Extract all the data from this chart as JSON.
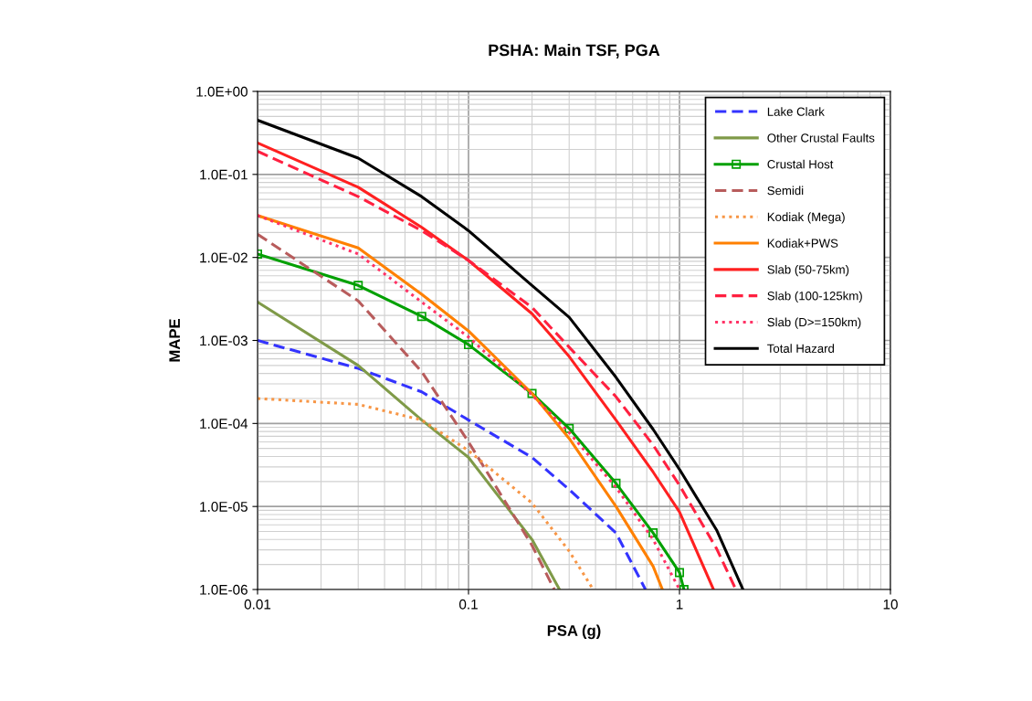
{
  "chart_data": {
    "type": "line",
    "title": "PSHA: Main TSF, PGA",
    "xlabel": "PSA (g)",
    "ylabel": "MAPE",
    "log": "xy",
    "grid": true,
    "legend": "top right",
    "xlim": [
      0.01,
      10
    ],
    "xticks": [
      0.01,
      0.1,
      1,
      10
    ],
    "ylim": [
      1e-06,
      1
    ],
    "yticks": [
      {
        "value": 1e-06,
        "label": "1.0E-06"
      },
      {
        "value": 1e-05,
        "label": "1.0E-05"
      },
      {
        "value": 0.0001,
        "label": "1.0E-04"
      },
      {
        "value": 0.001,
        "label": "1.0E-03"
      },
      {
        "value": 0.01,
        "label": "1.0E-02"
      },
      {
        "value": 0.1,
        "label": "1.0E-01"
      },
      {
        "value": 1,
        "label": "1.0E+00"
      }
    ],
    "series": [
      {
        "name": "Lake Clark",
        "color": "#3333ff",
        "line_style": "dashed",
        "x": [
          0.01,
          0.03,
          0.06,
          0.1,
          0.2,
          0.3,
          0.5,
          0.69
        ],
        "values": [
          0.001,
          0.00046,
          0.00024,
          0.00011,
          3.9e-05,
          1.6e-05,
          4.8e-06,
          1e-06
        ]
      },
      {
        "name": "Other Crustal Faults",
        "color": "#7f9a48",
        "line_style": "solid",
        "x": [
          0.01,
          0.03,
          0.06,
          0.1,
          0.2,
          0.27
        ],
        "values": [
          0.0029,
          0.0005,
          0.00011,
          3.9e-05,
          4e-06,
          1e-06
        ]
      },
      {
        "name": "Crustal Host",
        "color": "#00a000",
        "line_style": "solid",
        "marker": "square",
        "x": [
          0.01,
          0.03,
          0.06,
          0.1,
          0.2,
          0.3,
          0.5,
          0.75,
          1,
          1.05
        ],
        "values": [
          0.011,
          0.0046,
          0.00195,
          0.00089,
          0.00023,
          8.7e-05,
          1.9e-05,
          4.8e-06,
          1.6e-06,
          1e-06
        ]
      },
      {
        "name": "Semidi",
        "color": "#b85c5c",
        "line_style": "dashed",
        "x": [
          0.01,
          0.03,
          0.06,
          0.1,
          0.2,
          0.255
        ],
        "values": [
          0.019,
          0.003,
          0.00042,
          6e-05,
          3.4e-06,
          1e-06
        ]
      },
      {
        "name": "Kodiak (Mega)",
        "color": "#f79646",
        "line_style": "dotted",
        "x": [
          0.01,
          0.03,
          0.06,
          0.1,
          0.2,
          0.3,
          0.39
        ],
        "values": [
          0.0002,
          0.00017,
          0.00011,
          4.7e-05,
          1.1e-05,
          2.9e-06,
          1e-06
        ]
      },
      {
        "name": "Kodiak+PWS",
        "color": "#ff8000",
        "line_style": "solid",
        "x": [
          0.01,
          0.03,
          0.06,
          0.1,
          0.2,
          0.3,
          0.5,
          0.75,
          0.83
        ],
        "values": [
          0.032,
          0.013,
          0.0036,
          0.0013,
          0.00023,
          6.6e-05,
          1e-05,
          1.9e-06,
          1e-06
        ]
      },
      {
        "name": "Slab (50-75km)",
        "color": "#ff2020",
        "line_style": "solid",
        "x": [
          0.01,
          0.03,
          0.06,
          0.1,
          0.2,
          0.3,
          0.5,
          0.75,
          1,
          1.45
        ],
        "values": [
          0.24,
          0.07,
          0.023,
          0.0092,
          0.0021,
          0.00064,
          0.00011,
          2.6e-05,
          8.6e-06,
          1e-06
        ]
      },
      {
        "name": "Slab (100-125km)",
        "color": "#ff2040",
        "line_style": "dashed",
        "x": [
          0.01,
          0.03,
          0.06,
          0.1,
          0.2,
          0.3,
          0.5,
          0.75,
          1,
          1.5,
          1.85
        ],
        "values": [
          0.19,
          0.054,
          0.021,
          0.0092,
          0.0025,
          0.00083,
          0.00021,
          5.5e-05,
          1.8e-05,
          3.1e-06,
          1e-06
        ]
      },
      {
        "name": "Slab (D>=150km)",
        "color": "#ff3366",
        "line_style": "dotted",
        "x": [
          0.01,
          0.03,
          0.06,
          0.1,
          0.2,
          0.3,
          0.5,
          0.75,
          1
        ],
        "values": [
          0.032,
          0.011,
          0.0029,
          0.0011,
          0.00022,
          7.8e-05,
          1.7e-05,
          4e-06,
          1e-06
        ]
      },
      {
        "name": "Total Hazard",
        "color": "#000000",
        "line_style": "solid",
        "x": [
          0.01,
          0.03,
          0.06,
          0.1,
          0.2,
          0.3,
          0.5,
          0.75,
          1,
          1.5,
          2
        ],
        "values": [
          0.45,
          0.157,
          0.054,
          0.021,
          0.0046,
          0.0019,
          0.00036,
          8.5e-05,
          2.8e-05,
          5.2e-06,
          1e-06
        ]
      }
    ]
  }
}
